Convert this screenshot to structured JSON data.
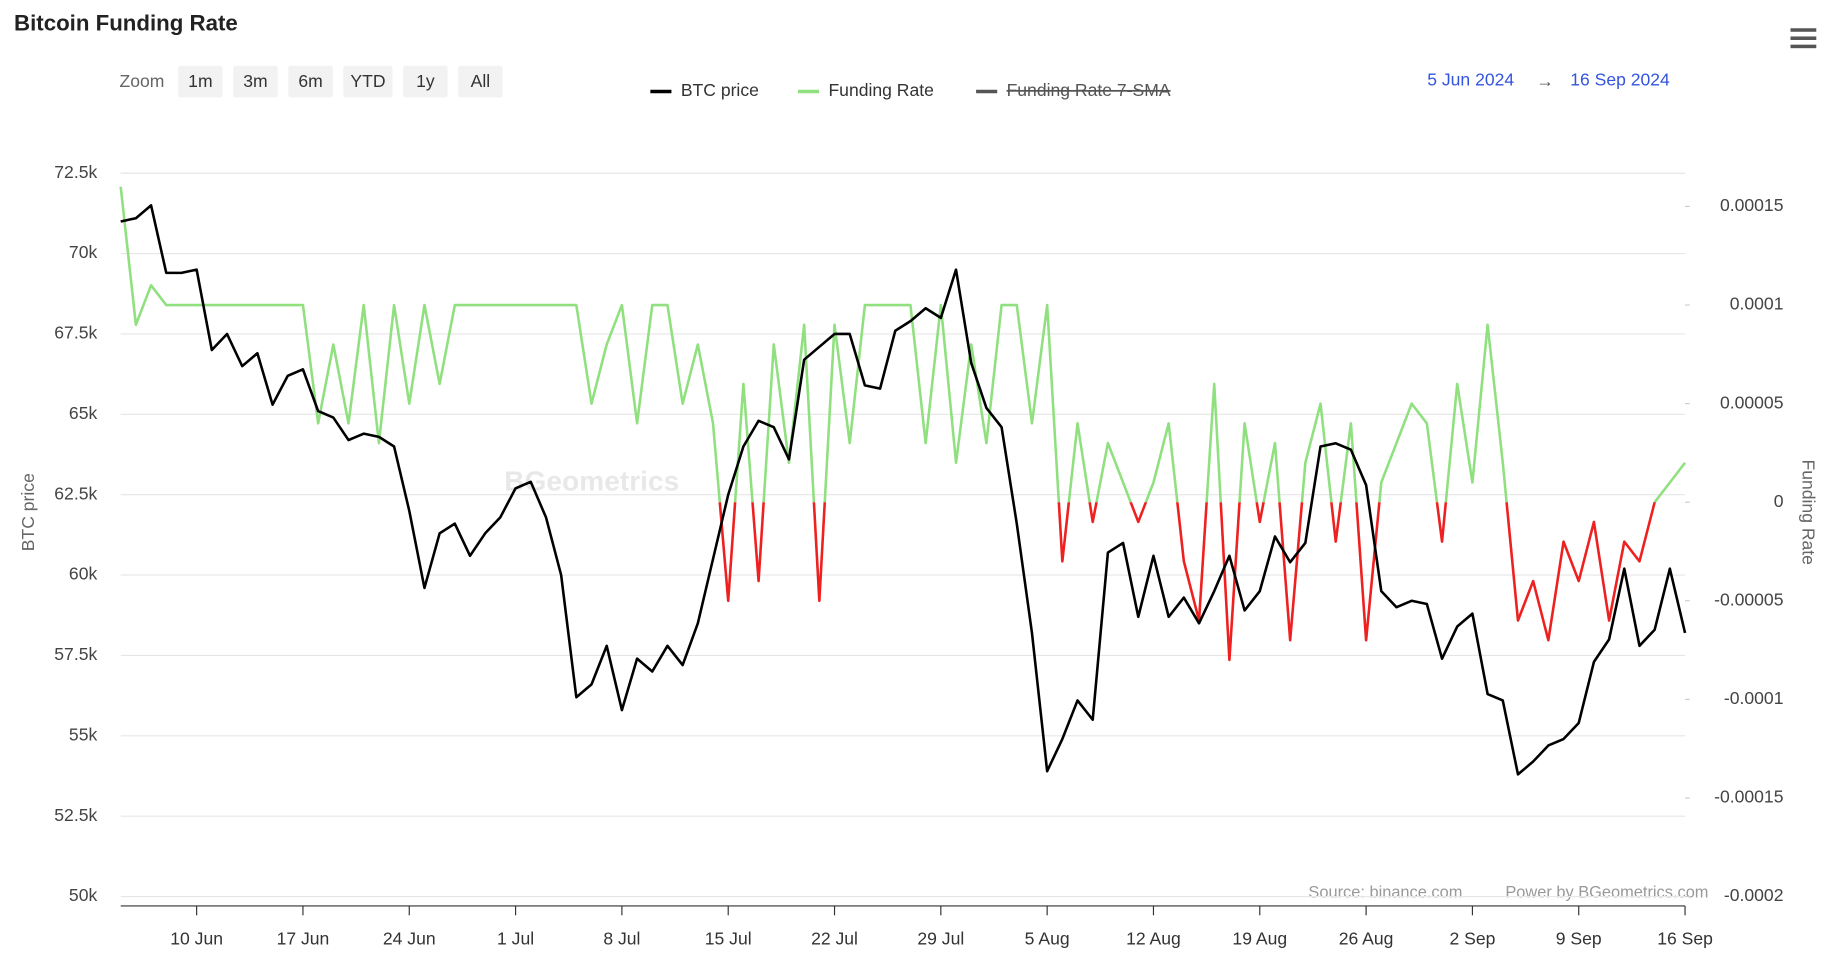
{
  "chart_data": {
    "type": "line",
    "title": "Bitcoin Funding Rate",
    "zoom_label": "Zoom",
    "zoom_buttons": [
      "1m",
      "3m",
      "6m",
      "YTD",
      "1y",
      "All"
    ],
    "range_from": "5 Jun 2024",
    "range_arrow": "→",
    "range_to": "16 Sep 2024",
    "source": "Source: binance.com",
    "credit": "Power by BGeometrics.com",
    "watermark": "BGeometrics",
    "ylabel": "BTC price",
    "y2label": "Funding Rate",
    "xlim": [
      0,
      103
    ],
    "xticks": [
      {
        "value": 5,
        "label": "10 Jun"
      },
      {
        "value": 12,
        "label": "17 Jun"
      },
      {
        "value": 19,
        "label": "24 Jun"
      },
      {
        "value": 26,
        "label": "1 Jul"
      },
      {
        "value": 33,
        "label": "8 Jul"
      },
      {
        "value": 40,
        "label": "15 Jul"
      },
      {
        "value": 47,
        "label": "22 Jul"
      },
      {
        "value": 54,
        "label": "29 Jul"
      },
      {
        "value": 61,
        "label": "5 Aug"
      },
      {
        "value": 68,
        "label": "12 Aug"
      },
      {
        "value": 75,
        "label": "19 Aug"
      },
      {
        "value": 82,
        "label": "26 Aug"
      },
      {
        "value": 89,
        "label": "2 Sep"
      },
      {
        "value": 96,
        "label": "9 Sep"
      },
      {
        "value": 103,
        "label": "16 Sep"
      }
    ],
    "ylim": [
      50000,
      73000
    ],
    "yticks": [
      {
        "value": 50000,
        "label": "50k"
      },
      {
        "value": 52500,
        "label": "52.5k"
      },
      {
        "value": 55000,
        "label": "55k"
      },
      {
        "value": 57500,
        "label": "57.5k"
      },
      {
        "value": 60000,
        "label": "60k"
      },
      {
        "value": 62500,
        "label": "62.5k"
      },
      {
        "value": 65000,
        "label": "65k"
      },
      {
        "value": 67500,
        "label": "67.5k"
      },
      {
        "value": 70000,
        "label": "70k"
      },
      {
        "value": 72500,
        "label": "72.5k"
      }
    ],
    "y2lim": [
      -0.0002,
      0.000175
    ],
    "y2ticks": [
      -0.0002,
      -0.00015,
      -0.0001,
      -5e-05,
      0,
      5e-05,
      0.0001,
      0.00015
    ],
    "grid": true,
    "legend": "top",
    "x": [
      0,
      1,
      2,
      3,
      4,
      5,
      6,
      7,
      8,
      9,
      10,
      11,
      12,
      13,
      14,
      15,
      16,
      17,
      18,
      19,
      20,
      21,
      22,
      23,
      24,
      25,
      26,
      27,
      28,
      29,
      30,
      31,
      32,
      33,
      34,
      35,
      36,
      37,
      38,
      39,
      40,
      41,
      42,
      43,
      44,
      45,
      46,
      47,
      48,
      49,
      50,
      51,
      52,
      53,
      54,
      55,
      56,
      57,
      58,
      59,
      60,
      61,
      62,
      63,
      64,
      65,
      66,
      67,
      68,
      69,
      70,
      71,
      72,
      73,
      74,
      75,
      76,
      77,
      78,
      79,
      80,
      81,
      82,
      83,
      84,
      85,
      86,
      87,
      88,
      89,
      90,
      91,
      92,
      93,
      94,
      95,
      96,
      97,
      98,
      99,
      100,
      101,
      102,
      103
    ],
    "series": [
      {
        "name": "BTC price",
        "color": "#000000",
        "axis": "y",
        "values": [
          71000,
          71100,
          71500,
          69400,
          69400,
          69500,
          67000,
          67500,
          66500,
          66900,
          65300,
          66200,
          66400,
          65100,
          64900,
          64200,
          64400,
          64300,
          64000,
          62000,
          59600,
          61300,
          61600,
          60600,
          61300,
          61800,
          62700,
          62900,
          61800,
          60000,
          56200,
          56600,
          57800,
          55800,
          57400,
          57000,
          57800,
          57200,
          58500,
          60500,
          62500,
          64000,
          64800,
          64600,
          63600,
          66700,
          67100,
          67500,
          67500,
          65900,
          65800,
          67600,
          67900,
          68300,
          68000,
          69500,
          66600,
          65200,
          64600,
          61600,
          58200,
          53900,
          54900,
          56100,
          55500,
          60700,
          61000,
          58700,
          60600,
          58700,
          59300,
          58500,
          59500,
          60600,
          58900,
          59500,
          61200,
          60400,
          61000,
          64000,
          64100,
          63900,
          62800,
          59500,
          59000,
          59200,
          59100,
          57400,
          58400,
          58800,
          56300,
          56100,
          53800,
          54200,
          54700,
          54900,
          55400,
          57300,
          58000,
          60200,
          57800,
          58300,
          60200,
          58200
        ]
      },
      {
        "name": "Funding Rate",
        "color": "#90e080",
        "negative_color": "#ee2020",
        "axis": "y2",
        "values": [
          0.00016,
          9e-05,
          0.00011,
          0.0001,
          0.0001,
          0.0001,
          0.0001,
          0.0001,
          0.0001,
          0.0001,
          0.0001,
          0.0001,
          0.0001,
          4e-05,
          8e-05,
          4e-05,
          0.0001,
          3e-05,
          0.0001,
          5e-05,
          0.0001,
          6e-05,
          0.0001,
          0.0001,
          0.0001,
          0.0001,
          0.0001,
          0.0001,
          0.0001,
          0.0001,
          0.0001,
          5e-05,
          8e-05,
          0.0001,
          4e-05,
          0.0001,
          0.0001,
          5e-05,
          8e-05,
          4e-05,
          -5e-05,
          6e-05,
          -4e-05,
          8e-05,
          2e-05,
          9e-05,
          -5e-05,
          9e-05,
          3e-05,
          0.0001,
          0.0001,
          0.0001,
          0.0001,
          3e-05,
          0.0001,
          2e-05,
          8e-05,
          3e-05,
          0.0001,
          0.0001,
          4e-05,
          0.0001,
          -3e-05,
          4e-05,
          -1e-05,
          3e-05,
          1e-05,
          -1e-05,
          1e-05,
          4e-05,
          -3e-05,
          -6e-05,
          6e-05,
          -8e-05,
          4e-05,
          -1e-05,
          3e-05,
          -7e-05,
          2e-05,
          5e-05,
          -2e-05,
          4e-05,
          -7e-05,
          1e-05,
          3e-05,
          5e-05,
          4e-05,
          -2e-05,
          6e-05,
          1e-05,
          9e-05,
          2e-05,
          -6e-05,
          -4e-05,
          -7e-05,
          -2e-05,
          -4e-05,
          -1e-05,
          -6e-05,
          -2e-05,
          -3e-05,
          0,
          1e-05,
          2e-05
        ]
      },
      {
        "name": "Funding Rate 7-SMA",
        "color": "#555555",
        "axis": "y2",
        "visible": false
      }
    ]
  }
}
